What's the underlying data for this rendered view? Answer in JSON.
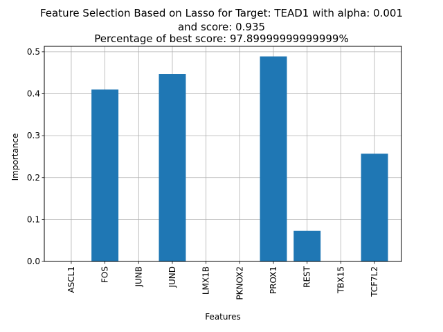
{
  "chart_data": {
    "type": "bar",
    "title": [
      "Feature Selection Based on Lasso for Target: TEAD1 with alpha: 0.001",
      "and score: 0.935",
      "Percentage of best score: 97.89999999999999%"
    ],
    "xlabel": "Features",
    "ylabel": "Importance",
    "categories": [
      "ASCL1",
      "FOS",
      "JUNB",
      "JUND",
      "LMX1B",
      "PKNOX2",
      "PROX1",
      "REST",
      "TBX15",
      "TCF7L2"
    ],
    "values": [
      0.0,
      0.41,
      0.0,
      0.447,
      0.0,
      0.0,
      0.489,
      0.073,
      0.0,
      0.257
    ],
    "ylim": [
      0,
      0.513
    ],
    "yticks": [
      "0.0",
      "0.1",
      "0.2",
      "0.3",
      "0.4",
      "0.5"
    ],
    "grid": true,
    "bar_color": "#1f77b4"
  }
}
